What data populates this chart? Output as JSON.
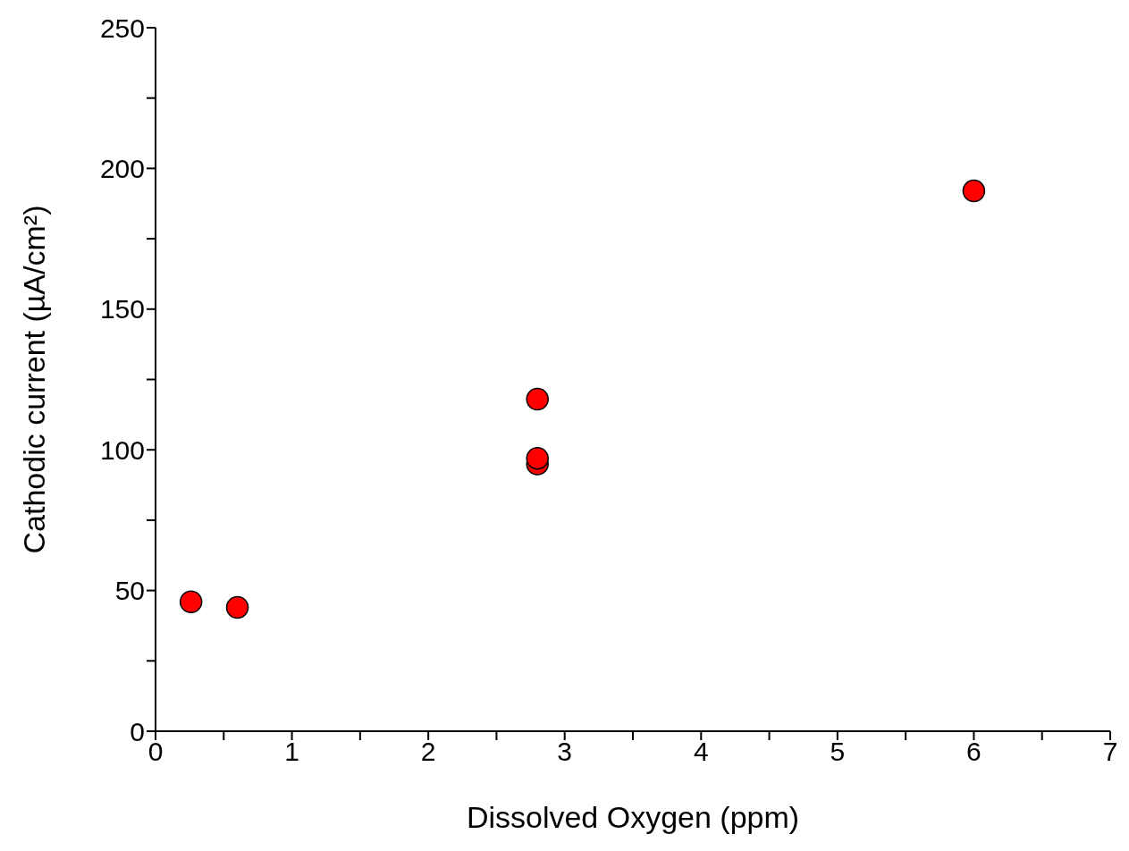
{
  "chart_data": {
    "type": "scatter",
    "xlabel": "Dissolved Oxygen (ppm)",
    "ylabel": "Cathodic current (µA/cm²)",
    "x": [
      0.26,
      0.6,
      2.8,
      2.8,
      2.8,
      6.0
    ],
    "values": [
      46,
      44,
      118,
      95,
      97,
      192
    ],
    "color": "#ff0000",
    "marker": "circle",
    "grid": false,
    "legend": false,
    "xlim": [
      0,
      7
    ],
    "ylim": [
      0,
      250
    ],
    "xticks": [
      0,
      {
        "value": 0.5,
        "label": null
      },
      1,
      {
        "value": 1.5,
        "label": null
      },
      2,
      {
        "value": 2.5,
        "label": null
      },
      3,
      {
        "value": 3.5,
        "label": null
      },
      4,
      {
        "value": 4.5,
        "label": null
      },
      5,
      {
        "value": 5.5,
        "label": null
      },
      6,
      {
        "value": 6.5,
        "label": null
      },
      7
    ],
    "yticks": [
      0,
      {
        "value": 25,
        "label": null
      },
      50,
      {
        "value": 75,
        "label": null
      },
      100,
      {
        "value": 125,
        "label": null
      },
      150,
      {
        "value": 175,
        "label": null
      },
      200,
      {
        "value": 225,
        "label": null
      },
      250
    ]
  }
}
